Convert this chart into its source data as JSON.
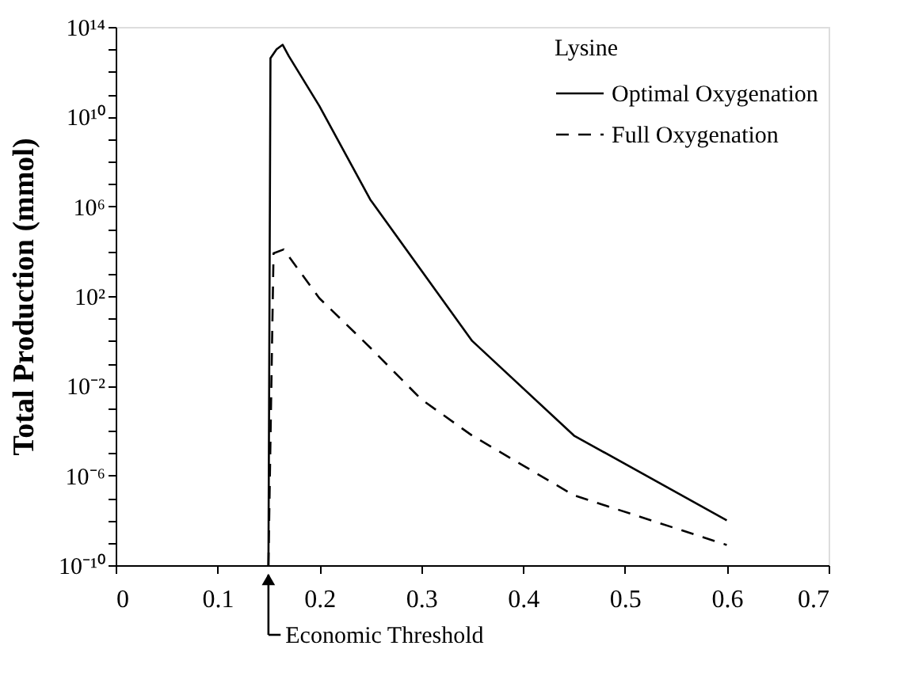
{
  "chart_data": {
    "type": "line",
    "ylabel": "Total Production (mmol)",
    "legend_title": "Lysine",
    "legend": "top right",
    "log": "y",
    "grid": false,
    "marker": "none",
    "xlim": [
      0,
      0.7
    ],
    "xticks": [
      0,
      0.1,
      0.2,
      0.3,
      0.4,
      0.5,
      0.6,
      0.7
    ],
    "ylim": [
      1e-10,
      100000000000000.0
    ],
    "yticks": [
      {
        "value": 1e-10,
        "label": "10⁻¹⁰"
      },
      {
        "value": 1e-09,
        "label": null
      },
      {
        "value": 1e-08,
        "label": null
      },
      {
        "value": 1e-07,
        "label": null
      },
      {
        "value": 1e-06,
        "label": "10⁻⁶"
      },
      {
        "value": 1e-05,
        "label": null
      },
      {
        "value": 0.0001,
        "label": null
      },
      {
        "value": 0.001,
        "label": null
      },
      {
        "value": 0.01,
        "label": "10⁻²"
      },
      {
        "value": 0.1,
        "label": null
      },
      {
        "value": 1,
        "label": null
      },
      {
        "value": 10,
        "label": null
      },
      {
        "value": 100,
        "label": "10²"
      },
      {
        "value": 1000.0,
        "label": null
      },
      {
        "value": 10000.0,
        "label": null
      },
      {
        "value": 100000.0,
        "label": null
      },
      {
        "value": 1000000.0,
        "label": "10⁶"
      },
      {
        "value": 10000000.0,
        "label": null
      },
      {
        "value": 100000000.0,
        "label": null
      },
      {
        "value": 1000000000.0,
        "label": null
      },
      {
        "value": 10000000000.0,
        "label": "10¹⁰"
      },
      {
        "value": 100000000000.0,
        "label": null
      },
      {
        "value": 1000000000000.0,
        "label": null
      },
      {
        "value": 10000000000000.0,
        "label": null
      },
      {
        "value": 100000000000000.0,
        "label": "10¹⁴"
      }
    ],
    "annotations": [
      "Economic Threshold"
    ],
    "series": [
      {
        "name": "Optimal Oxygenation",
        "color": "#000000",
        "line_style": "solid",
        "x": [
          0.15,
          0.152,
          0.158,
          0.164,
          0.17,
          0.2,
          0.25,
          0.35,
          0.45,
          0.6
        ],
        "values": [
          1e-10,
          4000000000000.0,
          10000000000000.0,
          16000000000000.0,
          5000000000000.0,
          30000000000.0,
          2000000.0,
          1,
          6e-05,
          1e-08
        ]
      },
      {
        "name": "Full Oxygenation",
        "color": "#000000",
        "line_style": "dashed",
        "x": [
          0.15,
          0.155,
          0.165,
          0.2,
          0.25,
          0.3,
          0.35,
          0.45,
          0.6
        ],
        "values": [
          1e-10,
          8000.0,
          12000.0,
          80,
          0.5,
          0.0025,
          6e-05,
          1.3e-07,
          8e-10
        ]
      }
    ]
  }
}
